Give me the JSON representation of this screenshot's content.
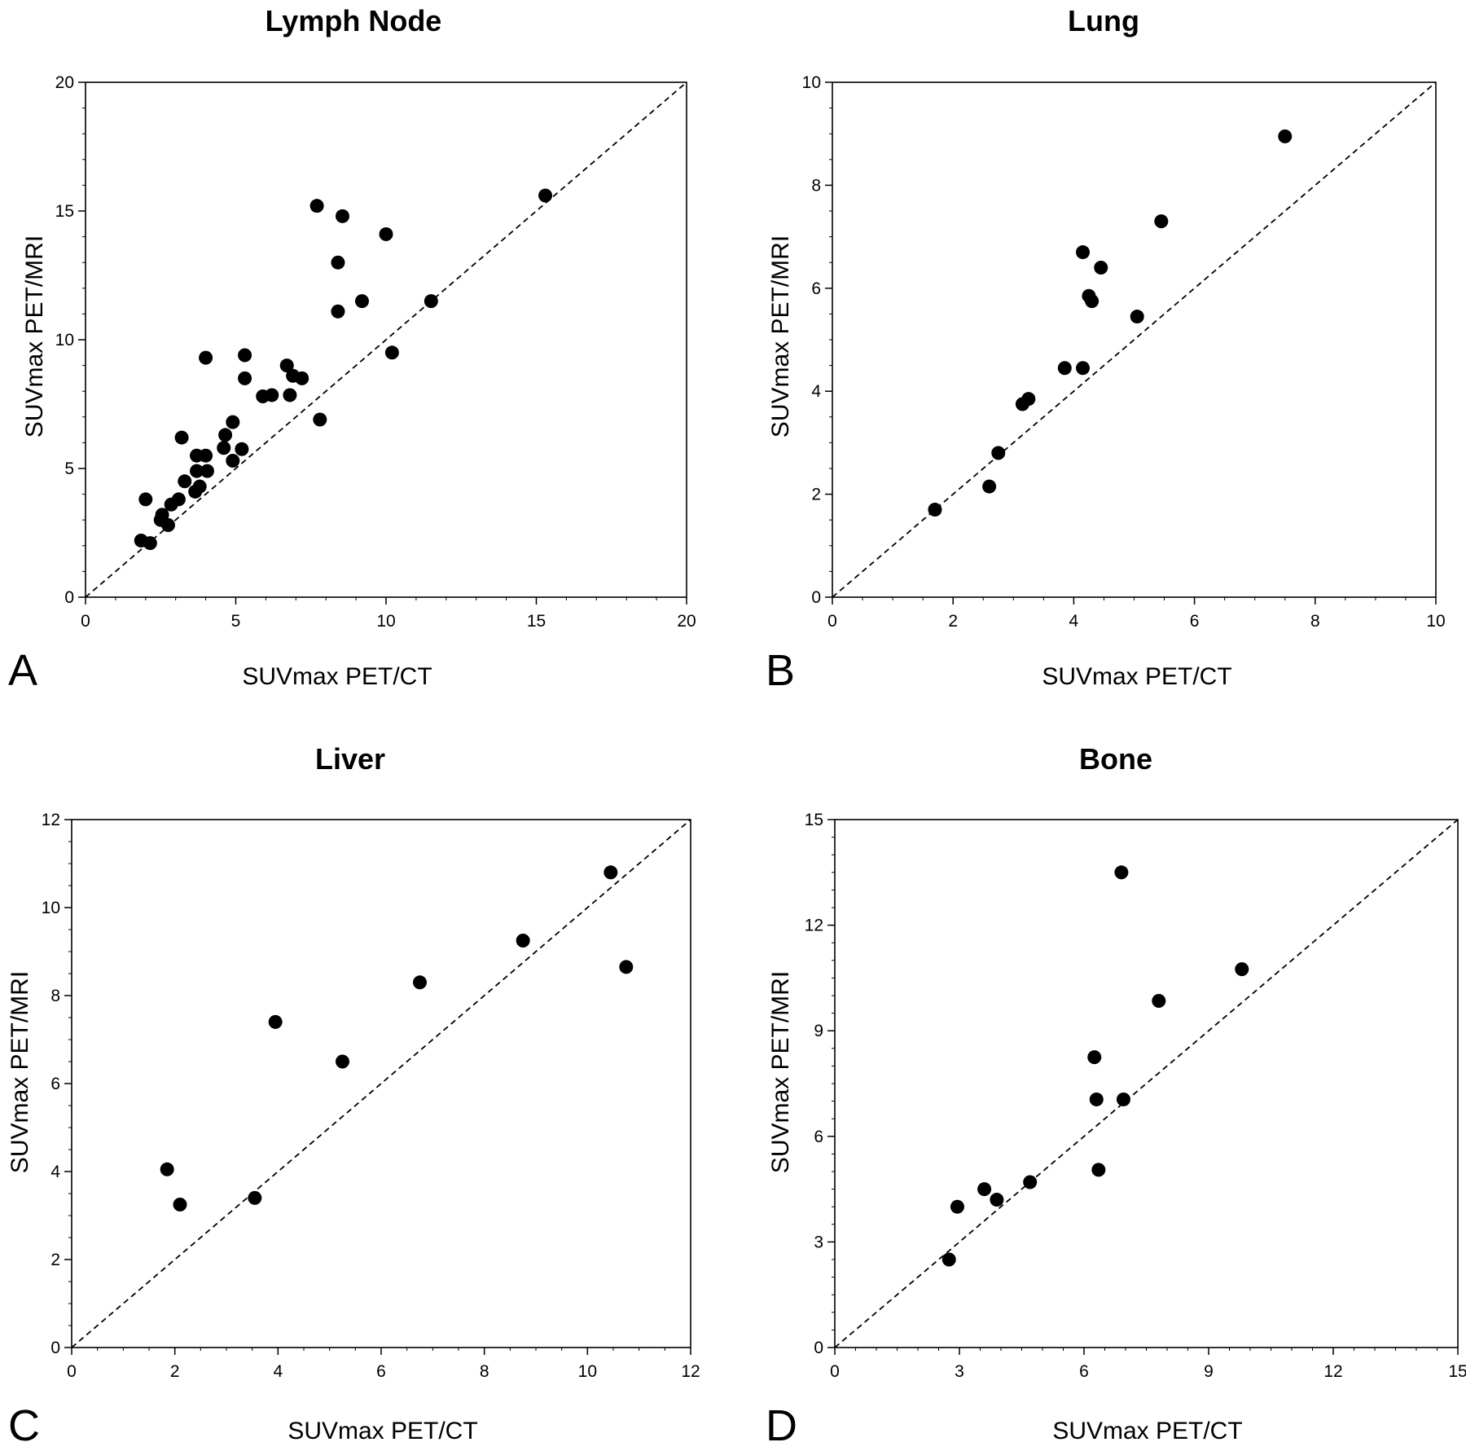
{
  "chart_data": [
    {
      "type": "scatter",
      "panel_label": "A",
      "title": "Lymph Node",
      "xlabel": "SUVmax  PET/CT",
      "ylabel": "SUVmax  PET/MRI",
      "xlim": [
        0,
        20
      ],
      "ylim": [
        0,
        20
      ],
      "xticks": [
        "0",
        "5",
        "10",
        "15",
        "20"
      ],
      "yticks": [
        "0",
        "5",
        "10",
        "15",
        "20"
      ],
      "minor_tick_step": 1,
      "identity_line": true,
      "grid": false,
      "points": [
        [
          1.85,
          2.2
        ],
        [
          2.0,
          3.8
        ],
        [
          2.15,
          2.1
        ],
        [
          2.5,
          3.0
        ],
        [
          2.55,
          3.2
        ],
        [
          2.75,
          2.8
        ],
        [
          2.85,
          3.6
        ],
        [
          3.1,
          3.8
        ],
        [
          3.2,
          6.2
        ],
        [
          3.3,
          4.5
        ],
        [
          3.65,
          4.1
        ],
        [
          3.7,
          4.9
        ],
        [
          3.7,
          5.5
        ],
        [
          3.8,
          4.3
        ],
        [
          4.0,
          5.5
        ],
        [
          4.0,
          9.3
        ],
        [
          4.05,
          4.9
        ],
        [
          4.6,
          5.8
        ],
        [
          4.65,
          6.3
        ],
        [
          4.9,
          6.8
        ],
        [
          4.9,
          5.3
        ],
        [
          5.2,
          5.75
        ],
        [
          5.3,
          8.5
        ],
        [
          5.3,
          9.4
        ],
        [
          5.9,
          7.8
        ],
        [
          6.2,
          7.85
        ],
        [
          6.7,
          9.0
        ],
        [
          6.8,
          7.85
        ],
        [
          6.9,
          8.6
        ],
        [
          7.2,
          8.5
        ],
        [
          7.7,
          15.2
        ],
        [
          7.8,
          6.9
        ],
        [
          8.4,
          13.0
        ],
        [
          8.4,
          11.1
        ],
        [
          8.55,
          14.8
        ],
        [
          9.2,
          11.5
        ],
        [
          10.0,
          14.1
        ],
        [
          10.2,
          9.5
        ],
        [
          11.5,
          11.5
        ],
        [
          15.3,
          15.6
        ]
      ]
    },
    {
      "type": "scatter",
      "panel_label": "B",
      "title": "Lung",
      "xlabel": "SUVmax  PET/CT",
      "ylabel": "SUVmax  PET/MRI",
      "xlim": [
        0,
        10
      ],
      "ylim": [
        0,
        10
      ],
      "xticks": [
        "0",
        "2",
        "4",
        "6",
        "8",
        "10"
      ],
      "yticks": [
        "0",
        "2",
        "4",
        "6",
        "8",
        "10"
      ],
      "minor_tick_step": 0.5,
      "identity_line": true,
      "grid": false,
      "points": [
        [
          1.7,
          1.7
        ],
        [
          2.6,
          2.15
        ],
        [
          2.75,
          2.8
        ],
        [
          3.15,
          3.75
        ],
        [
          3.25,
          3.85
        ],
        [
          3.85,
          4.45
        ],
        [
          4.15,
          4.45
        ],
        [
          4.15,
          6.7
        ],
        [
          4.25,
          5.85
        ],
        [
          4.3,
          5.75
        ],
        [
          4.45,
          6.4
        ],
        [
          5.05,
          5.45
        ],
        [
          5.45,
          7.3
        ],
        [
          7.5,
          8.95
        ]
      ]
    },
    {
      "type": "scatter",
      "panel_label": "C",
      "title": "Liver",
      "xlabel": "SUVmax  PET/CT",
      "ylabel": "SUVmax  PET/MRI",
      "xlim": [
        0,
        12
      ],
      "ylim": [
        0,
        12
      ],
      "xticks": [
        "0",
        "2",
        "4",
        "6",
        "8",
        "10",
        "12"
      ],
      "yticks": [
        "0",
        "2",
        "4",
        "6",
        "8",
        "10",
        "12"
      ],
      "minor_tick_step": 0.5,
      "identity_line": true,
      "grid": false,
      "points": [
        [
          1.85,
          4.05
        ],
        [
          2.1,
          3.25
        ],
        [
          3.55,
          3.4
        ],
        [
          3.95,
          7.4
        ],
        [
          5.25,
          6.5
        ],
        [
          6.75,
          8.3
        ],
        [
          8.75,
          9.25
        ],
        [
          10.45,
          10.8
        ],
        [
          10.75,
          8.65
        ]
      ]
    },
    {
      "type": "scatter",
      "panel_label": "D",
      "title": "Bone",
      "xlabel": "SUVmax  PET/CT",
      "ylabel": "SUVmax  PET/MRI",
      "xlim": [
        0,
        15
      ],
      "ylim": [
        0,
        15
      ],
      "xticks": [
        "0",
        "3",
        "6",
        "9",
        "12",
        "15"
      ],
      "yticks": [
        "0",
        "3",
        "6",
        "9",
        "12",
        "15"
      ],
      "minor_tick_step": 0.5,
      "identity_line": true,
      "grid": false,
      "points": [
        [
          2.75,
          2.5
        ],
        [
          2.95,
          4.0
        ],
        [
          3.6,
          4.5
        ],
        [
          3.9,
          4.2
        ],
        [
          4.7,
          4.7
        ],
        [
          6.25,
          8.25
        ],
        [
          6.3,
          7.05
        ],
        [
          6.35,
          5.05
        ],
        [
          6.9,
          13.5
        ],
        [
          6.95,
          7.05
        ],
        [
          7.8,
          9.85
        ],
        [
          9.8,
          10.75
        ]
      ]
    }
  ]
}
